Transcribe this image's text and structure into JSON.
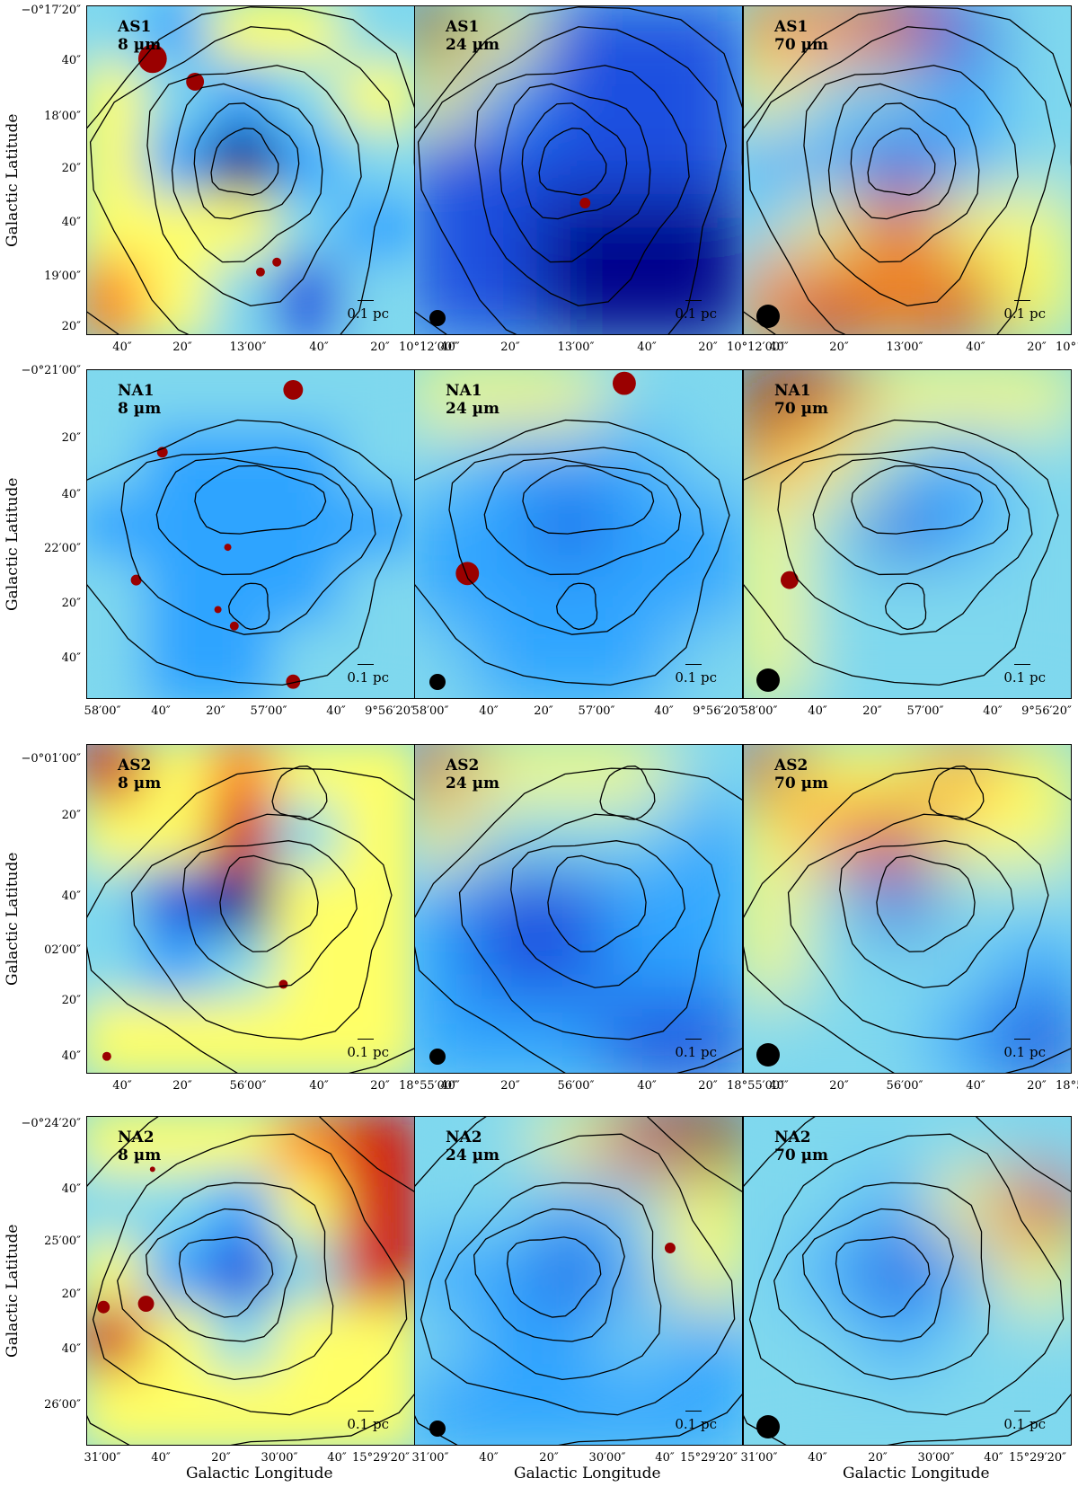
{
  "figure": {
    "y_axis_title": "Galactic Latitude",
    "x_axis_title": "Galactic Longitude",
    "scale_bar_label": "0.1 pc",
    "bands": [
      "8 µm",
      "24 µm",
      "70 µm"
    ],
    "colormap": [
      "#00008b",
      "#1f4fe0",
      "#2fa4ff",
      "#7fd8ee",
      "#ffff66",
      "#ff8c1a",
      "#d41a08",
      "#8b0000"
    ],
    "rows": [
      {
        "source": "AS1",
        "lat_ticks": [
          "−0°17′20″",
          "40″",
          "18′00″",
          "20″",
          "40″",
          "19′00″",
          "20″"
        ],
        "lon_ticks": [
          "40″",
          "20″",
          "13′00″",
          "40″",
          "20″",
          "10°12′00″"
        ],
        "beams": [
          "none",
          "24",
          "70"
        ]
      },
      {
        "source": "NA1",
        "lat_ticks": [
          "−0°21′00″",
          "20″",
          "40″",
          "22′00″",
          "20″",
          "40″"
        ],
        "lon_ticks": [
          "58′00″",
          "40″",
          "20″",
          "57′00″",
          "40″",
          "9°56′20″"
        ],
        "beams": [
          "none",
          "24",
          "70"
        ]
      },
      {
        "source": "AS2",
        "lat_ticks": [
          "−0°01′00″",
          "20″",
          "40″",
          "02′00″",
          "20″",
          "40″"
        ],
        "lon_ticks": [
          "40″",
          "20″",
          "56′00″",
          "40″",
          "20″",
          "18°55′00″"
        ],
        "beams": [
          "none",
          "24",
          "70"
        ]
      },
      {
        "source": "NA2",
        "lat_ticks": [
          "−0°24′20″",
          "40″",
          "25′00″",
          "20″",
          "40″",
          "26′00″"
        ],
        "lon_ticks": [
          "31′00″",
          "40″",
          "20″",
          "30′00″",
          "40″",
          "15°29′20″"
        ],
        "beams": [
          "none",
          "24",
          "70"
        ]
      }
    ]
  }
}
